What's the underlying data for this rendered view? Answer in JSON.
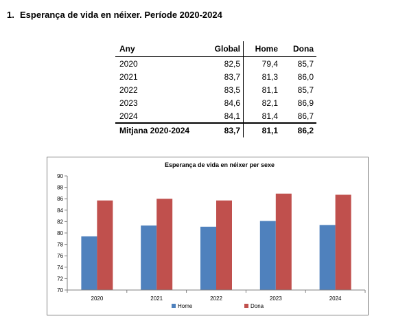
{
  "heading": {
    "number": "1.",
    "title": "Esperança de vida en néixer. Període 2020-2024"
  },
  "table": {
    "headers": [
      "Any",
      "Global",
      "Home",
      "Dona"
    ],
    "rows": [
      [
        "2020",
        "82,5",
        "79,4",
        "85,7"
      ],
      [
        "2021",
        "83,7",
        "81,3",
        "86,0"
      ],
      [
        "2022",
        "83,5",
        "81,1",
        "85,7"
      ],
      [
        "2023",
        "84,6",
        "82,1",
        "86,9"
      ],
      [
        "2024",
        "84,1",
        "81,4",
        "86,7"
      ]
    ],
    "summary": [
      "Mitjana 2020-2024",
      "83,7",
      "81,1",
      "86,2"
    ]
  },
  "chart_data": {
    "type": "bar",
    "title": "Esperança de vida en néixer per sexe",
    "categories": [
      "2020",
      "2021",
      "2022",
      "2023",
      "2024"
    ],
    "series": [
      {
        "name": "Home",
        "values": [
          79.4,
          81.3,
          81.1,
          82.1,
          81.4
        ],
        "color": "#4f81bd"
      },
      {
        "name": "Dona",
        "values": [
          85.7,
          86.0,
          85.7,
          86.9,
          86.7
        ],
        "color": "#c0504d"
      }
    ],
    "ylim": [
      70,
      90
    ],
    "yticks": [
      70,
      72,
      74,
      76,
      78,
      80,
      82,
      84,
      86,
      88,
      90
    ],
    "grid": false,
    "legend": "bottom",
    "xlabel": "",
    "ylabel": ""
  }
}
